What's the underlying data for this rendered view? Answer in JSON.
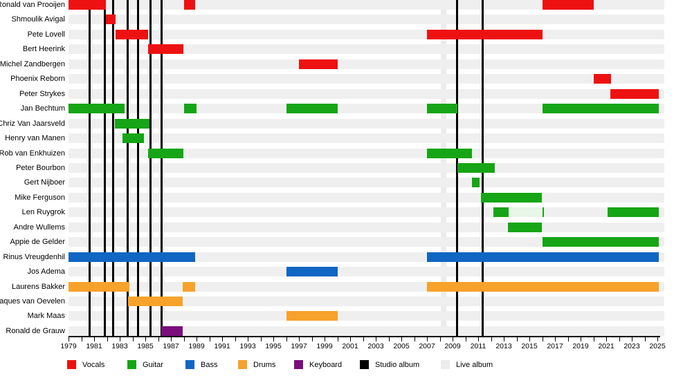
{
  "chart_data": {
    "type": "timeline",
    "description": "Band members timeline (Gantt-style), x axis 1979-2025",
    "x_axis": {
      "start_year": 1979,
      "end_year": 2025,
      "tick_interval_years": 1,
      "label_interval_years": 2,
      "tick_labels": [
        "1979",
        "1981",
        "1983",
        "1985",
        "1987",
        "1989",
        "1991",
        "1993",
        "1995",
        "1997",
        "1999",
        "2001",
        "2003",
        "2005",
        "2007",
        "2009",
        "2011",
        "2013",
        "2015",
        "2017",
        "2019",
        "2021",
        "2023",
        "2025"
      ]
    },
    "colors": {
      "vocals": "#ee1111",
      "guitar": "#16a516",
      "guitar_faint": "#e7f6e7",
      "bass": "#1066c2",
      "drums": "#f7a22b",
      "keyboard": "#7b0e7b",
      "studio_album": "#000000",
      "live_album": "#ececec",
      "row_track": "#efefef"
    },
    "members": [
      {
        "name": "Ronald van Prooijen",
        "bars": [
          {
            "start": 1979.0,
            "end": 1981.9,
            "type": "vocals"
          },
          {
            "start": 1988.0,
            "end": 1988.9,
            "type": "vocals"
          },
          {
            "start": 2016.0,
            "end": 2020.0,
            "type": "vocals"
          }
        ]
      },
      {
        "name": "Shmoulik Avigal",
        "bars": [
          {
            "start": 1981.9,
            "end": 1982.7,
            "type": "vocals"
          }
        ]
      },
      {
        "name": "Pete Lovell",
        "bars": [
          {
            "start": 1982.7,
            "end": 1985.2,
            "type": "vocals"
          },
          {
            "start": 2007.0,
            "end": 2016.0,
            "type": "vocals"
          }
        ]
      },
      {
        "name": "Bert Heerink",
        "bars": [
          {
            "start": 1985.2,
            "end": 1988.0,
            "type": "vocals"
          }
        ]
      },
      {
        "name": "Michel Zandbergen",
        "bars": [
          {
            "start": 1997.0,
            "end": 2000.0,
            "type": "vocals"
          }
        ]
      },
      {
        "name": "Phoenix Reborn",
        "bars": [
          {
            "start": 2020.0,
            "end": 2021.4,
            "type": "vocals"
          }
        ]
      },
      {
        "name": "Peter Strykes",
        "bars": [
          {
            "start": 2021.3,
            "end": 2025.1,
            "type": "vocals"
          }
        ]
      },
      {
        "name": "Jan Bechtum",
        "bars": [
          {
            "start": 1979.0,
            "end": 1983.4,
            "type": "guitar"
          },
          {
            "start": 1988.0,
            "end": 1989.0,
            "type": "guitar"
          },
          {
            "start": 1996.0,
            "end": 2000.0,
            "type": "guitar"
          },
          {
            "start": 2007.0,
            "end": 2009.4,
            "type": "guitar"
          },
          {
            "start": 2016.0,
            "end": 2025.1,
            "type": "guitar"
          }
        ]
      },
      {
        "name": "Chriz Van Jaarsveld",
        "bars": [
          {
            "start": 1982.6,
            "end": 1985.3,
            "type": "guitar"
          }
        ]
      },
      {
        "name": "Henry van Manen",
        "bars": [
          {
            "start": 1983.2,
            "end": 1984.9,
            "type": "guitar"
          }
        ]
      },
      {
        "name": "Rob van Enkhuizen",
        "bars": [
          {
            "start": 1985.2,
            "end": 1988.0,
            "type": "guitar"
          },
          {
            "start": 2007.0,
            "end": 2010.5,
            "type": "guitar"
          }
        ]
      },
      {
        "name": "Peter Bourbon",
        "bars": [
          {
            "start": 2009.4,
            "end": 2012.3,
            "type": "guitar"
          }
        ]
      },
      {
        "name": "Gert Nijboer",
        "bars": [
          {
            "start": 2010.5,
            "end": 2011.1,
            "type": "guitar"
          }
        ]
      },
      {
        "name": "Mike Ferguson",
        "bars": [
          {
            "start": 2011.2,
            "end": 2016.0,
            "type": "guitar"
          }
        ]
      },
      {
        "name": "Len Ruygrok",
        "bars": [
          {
            "start": 2012.2,
            "end": 2013.4,
            "type": "guitar"
          },
          {
            "start": 2013.4,
            "end": 2016.0,
            "type": "guitar_faint"
          },
          {
            "start": 2016.0,
            "end": 2016.15,
            "type": "guitar"
          },
          {
            "start": 2021.1,
            "end": 2025.1,
            "type": "guitar"
          }
        ]
      },
      {
        "name": "Andre Wullems",
        "bars": [
          {
            "start": 2013.3,
            "end": 2016.0,
            "type": "guitar"
          }
        ]
      },
      {
        "name": "Appie de Gelder",
        "bars": [
          {
            "start": 2016.0,
            "end": 2025.1,
            "type": "guitar"
          }
        ]
      },
      {
        "name": "Rinus Vreugdenhil",
        "bars": [
          {
            "start": 1979.0,
            "end": 1988.9,
            "type": "bass"
          },
          {
            "start": 2007.0,
            "end": 2025.1,
            "type": "bass"
          }
        ]
      },
      {
        "name": "Jos Adema",
        "bars": [
          {
            "start": 1996.0,
            "end": 2000.0,
            "type": "bass"
          }
        ]
      },
      {
        "name": "Laurens Bakker",
        "bars": [
          {
            "start": 1979.0,
            "end": 1983.75,
            "type": "drums"
          },
          {
            "start": 1987.9,
            "end": 1988.9,
            "type": "drums"
          },
          {
            "start": 2007.0,
            "end": 2025.1,
            "type": "drums"
          }
        ]
      },
      {
        "name": "Jaques van Oevelen",
        "bars": [
          {
            "start": 1983.65,
            "end": 1987.9,
            "type": "drums"
          }
        ]
      },
      {
        "name": "Mark Maas",
        "bars": [
          {
            "start": 1996.0,
            "end": 2000.0,
            "type": "drums"
          }
        ]
      },
      {
        "name": "Ronald de Grauw",
        "bars": [
          {
            "start": 1986.25,
            "end": 1987.9,
            "type": "keyboard"
          }
        ]
      }
    ],
    "studio_albums": [
      1980.65,
      1981.85,
      1982.5,
      1983.6,
      1984.45,
      1985.4,
      1986.25,
      2009.35,
      2011.35
    ],
    "live_albums": [
      {
        "start": 2008.1,
        "end": 2008.5
      }
    ]
  },
  "legend": {
    "items": [
      {
        "label": "Vocals",
        "type": "vocals"
      },
      {
        "label": "Guitar",
        "type": "guitar"
      },
      {
        "label": "Bass",
        "type": "bass"
      },
      {
        "label": "Drums",
        "type": "drums"
      },
      {
        "label": "Keyboard",
        "type": "keyboard"
      },
      {
        "label": "Studio album",
        "type": "studio_album"
      },
      {
        "label": "Live album",
        "type": "live_album"
      }
    ]
  }
}
